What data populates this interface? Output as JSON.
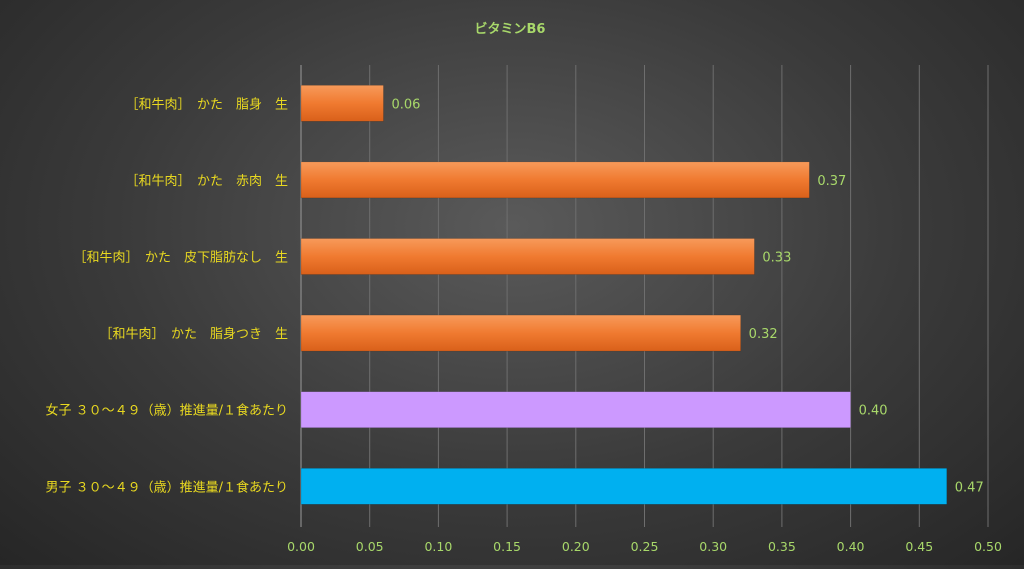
{
  "chart_data": {
    "type": "bar",
    "orientation": "horizontal",
    "title": "ビタミンB6",
    "xlabel": "",
    "ylabel": "",
    "xlim": [
      0,
      0.5
    ],
    "x_ticks": [
      "0.00",
      "0.05",
      "0.10",
      "0.15",
      "0.20",
      "0.25",
      "0.30",
      "0.35",
      "0.40",
      "0.45",
      "0.50"
    ],
    "grid": true,
    "legend": "none",
    "categories": [
      "［和牛肉］　かた　脂身　生",
      "［和牛肉］　かた　赤肉　生",
      "［和牛肉］　かた　皮下脂肪なし　生",
      "［和牛肉］　かた　脂身つき　生",
      "女子 ３０～４９（歳）推進量/１食あたり",
      "男子 ３０～４９（歳）推進量/１食あたり"
    ],
    "values": [
      0.06,
      0.37,
      0.33,
      0.32,
      0.4,
      0.47
    ],
    "value_labels": [
      "0.06",
      "0.37",
      "0.33",
      "0.32",
      "0.40",
      "0.47"
    ],
    "bar_colors": [
      "#f07a30",
      "#f07a30",
      "#f07a30",
      "#f07a30",
      "#cc99ff",
      "#00b0f0"
    ]
  },
  "colors": {
    "title": "#a8d86a",
    "category_label": "#e8d820",
    "value_label": "#a8d86a",
    "tick_label": "#a8d86a",
    "grid": "#6e6e6e",
    "axis": "#9a9a9a"
  }
}
